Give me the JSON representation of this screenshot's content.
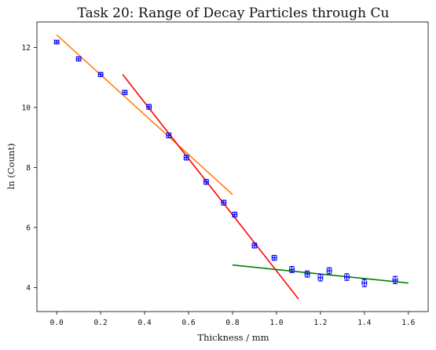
{
  "chart_data": {
    "type": "scatter",
    "title": "Task 20: Range of Decay Particles through Cu",
    "xlabel": "Thickness / mm",
    "ylabel": "ln (Count)",
    "xlim": [
      -0.09,
      1.69
    ],
    "ylim": [
      3.2,
      12.85
    ],
    "xticks": [
      0.0,
      0.2,
      0.4,
      0.6,
      0.8,
      1.0,
      1.2,
      1.4,
      1.6
    ],
    "xtick_labels": [
      "0.0",
      "0.2",
      "0.4",
      "0.6",
      "0.8",
      "1.0",
      "1.2",
      "1.4",
      "1.6"
    ],
    "yticks": [
      4,
      6,
      8,
      10,
      12
    ],
    "ytick_labels": [
      "4",
      "6",
      "8",
      "10",
      "12"
    ],
    "grid": false,
    "points": {
      "color": "#0000ff",
      "x": [
        0.0,
        0.1,
        0.2,
        0.31,
        0.42,
        0.51,
        0.59,
        0.68,
        0.76,
        0.81,
        0.9,
        0.99,
        1.07,
        1.14,
        1.2,
        1.24,
        1.32,
        1.4,
        1.54
      ],
      "y": [
        12.18,
        11.62,
        11.1,
        10.5,
        10.02,
        9.07,
        8.33,
        7.52,
        6.83,
        6.43,
        5.4,
        4.99,
        4.6,
        4.45,
        4.33,
        4.56,
        4.35,
        4.15,
        4.25
      ],
      "xerr": [
        0.01,
        0.01,
        0.01,
        0.01,
        0.01,
        0.01,
        0.01,
        0.01,
        0.01,
        0.01,
        0.01,
        0.01,
        0.01,
        0.01,
        0.01,
        0.01,
        0.01,
        0.01,
        0.01
      ],
      "yerr": [
        0.06,
        0.07,
        0.07,
        0.07,
        0.08,
        0.08,
        0.08,
        0.08,
        0.08,
        0.08,
        0.08,
        0.08,
        0.1,
        0.1,
        0.11,
        0.1,
        0.11,
        0.12,
        0.12
      ]
    },
    "fit_lines": [
      {
        "color": "#ff7f0e",
        "x": [
          0.0,
          0.8
        ],
        "y": [
          12.42,
          7.1
        ]
      },
      {
        "color": "#ff0000",
        "x": [
          0.3,
          1.1
        ],
        "y": [
          11.1,
          3.62
        ]
      },
      {
        "color": "#008000",
        "x": [
          0.8,
          1.6
        ],
        "y": [
          4.75,
          4.15
        ]
      }
    ]
  }
}
